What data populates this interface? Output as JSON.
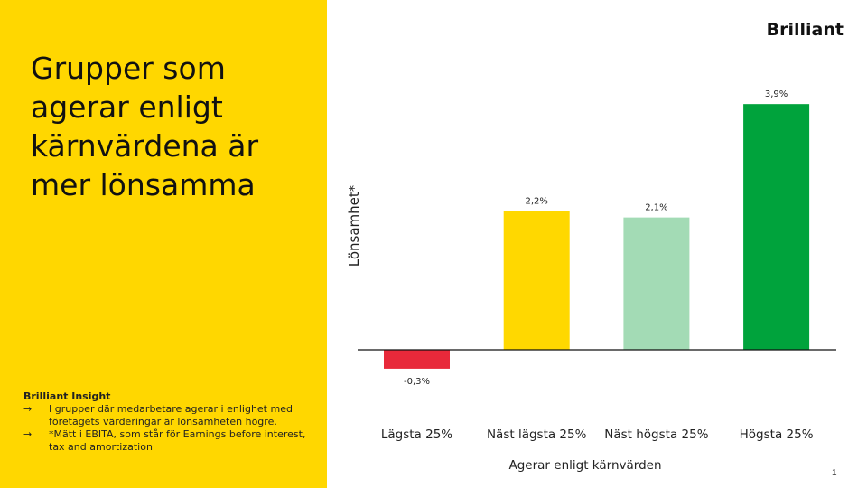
{
  "title": "Grupper som agerar enligt kärnvärdena är mer lönsamma",
  "logo": "Brilliant",
  "page_number": "1",
  "insight": {
    "heading": "Brilliant Insight",
    "arrow": "→",
    "items": [
      "I grupper där medarbetare agerar i enlighet med företagets värderingar är lönsamheten högre.",
      "*Mätt i EBITA, som står för Earnings before interest, tax and amortization"
    ]
  },
  "chart_data": {
    "type": "bar",
    "categories": [
      "Lägsta 25%",
      "Näst lägsta 25%",
      "Näst högsta 25%",
      "Högsta 25%"
    ],
    "values": [
      -0.3,
      2.2,
      2.1,
      3.9
    ],
    "data_labels": [
      "-0,3%",
      "2,2%",
      "2,1%",
      "3,9%"
    ],
    "colors": [
      "#e8293a",
      "#ffd800",
      "#a3dbb5",
      "#00a33c"
    ],
    "xlabel": "Agerar enligt kärnvärden",
    "ylabel": "Lönsamhet*",
    "grid": false
  }
}
